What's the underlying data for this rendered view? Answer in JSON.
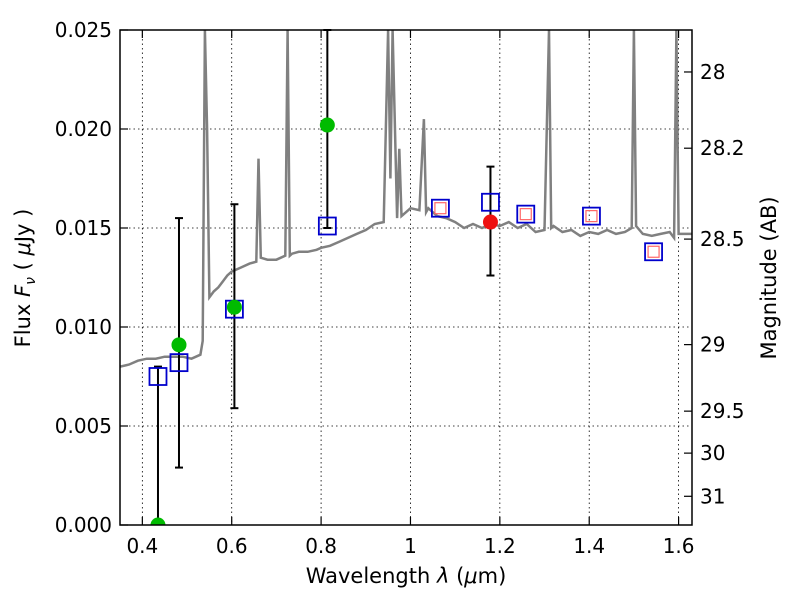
{
  "chart_data": {
    "type": "line",
    "xlabel": "Wavelength  λ (μm)",
    "ylabel": "Flux  F_ν  ( μJy )",
    "ylabel_right": "Magnitude (AB)",
    "ylabel_parts": {
      "pre": "Flux  ",
      "var": "F",
      "sub": "ν",
      "mid": "  ( ",
      "mu": "μ",
      "post": "Jy )"
    },
    "xlabel_parts": {
      "pre": "Wavelength  ",
      "var": "λ",
      "mid": " (",
      "mu": "μ",
      "post": "m)"
    },
    "xlim": [
      0.35,
      1.63
    ],
    "ylim": [
      0.0,
      0.025
    ],
    "x_ticks": [
      0.4,
      0.6,
      0.8,
      1.0,
      1.2,
      1.4,
      1.6
    ],
    "x_tick_labels": [
      "0.4",
      "0.6",
      "0.8",
      "1",
      "1.2",
      "1.4",
      "1.6"
    ],
    "y_ticks": [
      0.0,
      0.005,
      0.01,
      0.015,
      0.02,
      0.025
    ],
    "y_tick_labels": [
      "0.000",
      "0.005",
      "0.010",
      "0.015",
      "0.020",
      "0.025"
    ],
    "right_ticks": [
      {
        "label": "28",
        "flux": 0.02288
      },
      {
        "label": "28.2",
        "flux": 0.01903
      },
      {
        "label": "28.5",
        "flux": 0.01444
      },
      {
        "label": "29",
        "flux": 0.00911
      },
      {
        "label": "29.5",
        "flux": 0.00575
      },
      {
        "label": "30",
        "flux": 0.00363
      },
      {
        "label": "31",
        "flux": 0.00145
      }
    ],
    "grid": true,
    "colors": {
      "spectrum": "#808080",
      "observed": "#00bb00",
      "detected": "#ee1111",
      "model_box": "#0000cc",
      "model_box_inner": "#ff6666",
      "errorbar": "#000000"
    },
    "series": [
      {
        "name": "model spectrum",
        "kind": "line",
        "x": [
          0.35,
          0.37,
          0.39,
          0.41,
          0.43,
          0.45,
          0.47,
          0.49,
          0.51,
          0.53,
          0.535,
          0.54,
          0.545,
          0.55,
          0.56,
          0.57,
          0.58,
          0.59,
          0.6,
          0.62,
          0.64,
          0.655,
          0.66,
          0.665,
          0.68,
          0.7,
          0.72,
          0.725,
          0.73,
          0.735,
          0.75,
          0.77,
          0.79,
          0.8,
          0.82,
          0.84,
          0.86,
          0.88,
          0.9,
          0.92,
          0.94,
          0.95,
          0.955,
          0.96,
          0.97,
          0.975,
          0.98,
          0.99,
          1.0,
          1.02,
          1.03,
          1.035,
          1.04,
          1.05,
          1.06,
          1.08,
          1.1,
          1.12,
          1.14,
          1.16,
          1.18,
          1.2,
          1.22,
          1.24,
          1.26,
          1.28,
          1.3,
          1.31,
          1.315,
          1.32,
          1.34,
          1.36,
          1.38,
          1.4,
          1.42,
          1.44,
          1.46,
          1.48,
          1.495,
          1.5,
          1.505,
          1.52,
          1.54,
          1.56,
          1.58,
          1.59,
          1.595,
          1.6,
          1.63
        ],
        "y": [
          0.008,
          0.0081,
          0.0083,
          0.0084,
          0.0084,
          0.0085,
          0.0085,
          0.0085,
          0.0084,
          0.0086,
          0.0093,
          0.025,
          0.02,
          0.0115,
          0.0118,
          0.012,
          0.0123,
          0.0126,
          0.0128,
          0.013,
          0.0132,
          0.0133,
          0.0185,
          0.0135,
          0.0134,
          0.0134,
          0.0136,
          0.025,
          0.0136,
          0.0137,
          0.0138,
          0.0138,
          0.0139,
          0.014,
          0.0141,
          0.0143,
          0.0145,
          0.0147,
          0.0149,
          0.0152,
          0.0153,
          0.025,
          0.0175,
          0.025,
          0.0155,
          0.019,
          0.0156,
          0.0158,
          0.016,
          0.0159,
          0.0205,
          0.0158,
          0.016,
          0.0158,
          0.0156,
          0.0155,
          0.0153,
          0.015,
          0.0152,
          0.015,
          0.0152,
          0.0151,
          0.0153,
          0.015,
          0.0152,
          0.0148,
          0.0149,
          0.025,
          0.015,
          0.0151,
          0.0148,
          0.0149,
          0.0146,
          0.0148,
          0.0147,
          0.0149,
          0.0147,
          0.0148,
          0.015,
          0.025,
          0.0151,
          0.0147,
          0.0146,
          0.0147,
          0.0148,
          0.0145,
          0.025,
          0.0147,
          0.0147
        ]
      },
      {
        "name": "observed photometry",
        "kind": "points",
        "x": [
          0.435,
          0.482,
          0.606,
          0.814,
          1.179
        ],
        "y": [
          0.0,
          0.0091,
          0.011,
          0.0202,
          0.0153
        ],
        "yerr_low": [
          0.0,
          0.0062,
          0.0051,
          0.0052,
          0.0027
        ],
        "yerr_high": [
          0.008,
          0.0064,
          0.0052,
          0.0048,
          0.0028
        ],
        "colors": [
          "#00bb00",
          "#00bb00",
          "#00bb00",
          "#00bb00",
          "#ee1111"
        ]
      },
      {
        "name": "model photometry",
        "kind": "squares",
        "x": [
          0.435,
          0.482,
          0.606,
          0.814,
          1.067,
          1.179,
          1.258,
          1.405,
          1.544
        ],
        "y": [
          0.0075,
          0.0082,
          0.0109,
          0.0151,
          0.016,
          0.0163,
          0.0157,
          0.0156,
          0.0138
        ],
        "inner": [
          false,
          false,
          false,
          false,
          true,
          false,
          true,
          true,
          true
        ]
      }
    ]
  }
}
